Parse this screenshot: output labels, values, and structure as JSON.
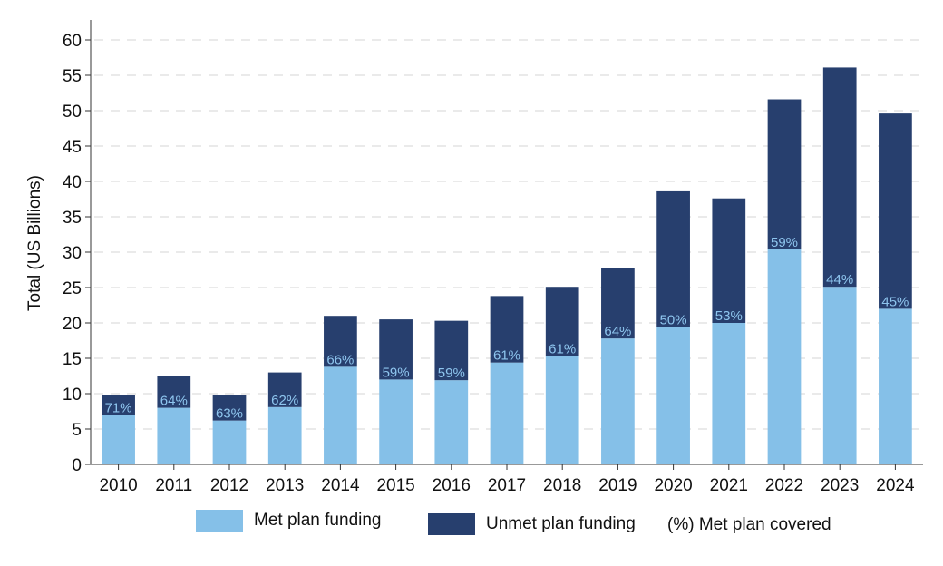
{
  "chart_data": {
    "type": "bar",
    "stacked": true,
    "title": "",
    "xlabel": "",
    "ylabel": "Total (US Billions)",
    "ylim": [
      0,
      60
    ],
    "yticks": [
      0,
      5,
      10,
      15,
      20,
      25,
      30,
      35,
      40,
      45,
      50,
      55,
      60
    ],
    "grid": "horizontal dashed",
    "categories": [
      "2010",
      "2011",
      "2012",
      "2013",
      "2014",
      "2015",
      "2016",
      "2017",
      "2018",
      "2019",
      "2020",
      "2021",
      "2022",
      "2023",
      "2024"
    ],
    "series": [
      {
        "name": "Met plan funding",
        "color": "#85c0e8",
        "values": [
          7.0,
          8.0,
          6.2,
          8.1,
          13.8,
          12.0,
          11.9,
          14.4,
          15.3,
          17.8,
          19.4,
          20.0,
          30.4,
          25.1,
          22.0
        ]
      },
      {
        "name": "Unmet plan funding",
        "color": "#273f6e",
        "values": [
          2.8,
          4.5,
          3.6,
          4.9,
          7.2,
          8.5,
          8.4,
          9.4,
          9.8,
          10.0,
          19.2,
          17.6,
          21.2,
          31.0,
          27.6
        ]
      }
    ],
    "labels": [
      "71%",
      "64%",
      "63%",
      "62%",
      "66%",
      "59%",
      "59%",
      "61%",
      "61%",
      "64%",
      "50%",
      "53%",
      "59%",
      "44%",
      "45%"
    ],
    "label_color": "#8ec5ee",
    "legend": {
      "position": "bottom",
      "items": [
        "Met plan funding",
        "Unmet plan funding"
      ],
      "note": "(%) Met plan covered"
    }
  }
}
